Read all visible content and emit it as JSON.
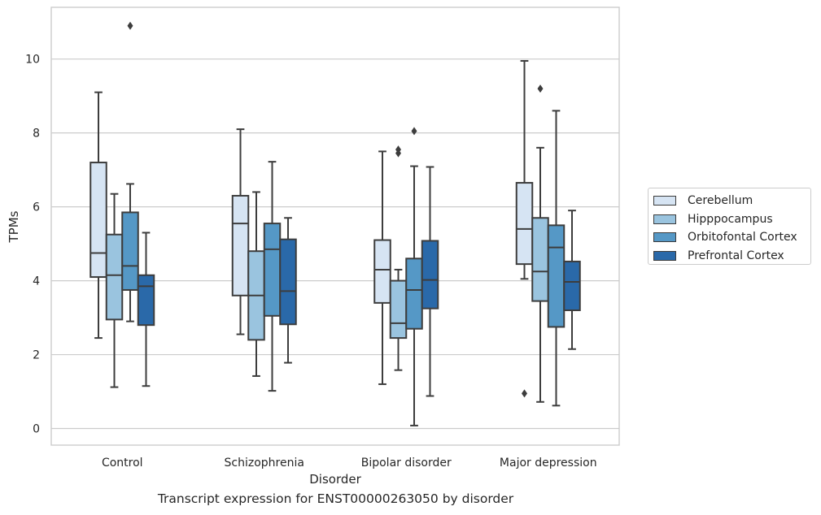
{
  "caption": "Transcript expression for ENST00000263050 by disorder",
  "chart_data": {
    "type": "boxplot",
    "xlabel": "Disorder",
    "ylabel": "TPMs",
    "ylim": [
      -0.45,
      11.4
    ],
    "yticks": [
      0,
      2,
      4,
      6,
      8,
      10
    ],
    "categories": [
      "Control",
      "Schizophrenia",
      "Bipolar disorder",
      "Major depression"
    ],
    "grid": "horizontal",
    "legend_position": "right",
    "series": [
      {
        "name": "Cerebellum",
        "color": "#d6e4f3",
        "boxes": [
          {
            "whisker_low": 2.45,
            "q1": 4.1,
            "median": 4.75,
            "q3": 7.2,
            "whisker_high": 9.1,
            "outliers": []
          },
          {
            "whisker_low": 2.55,
            "q1": 3.6,
            "median": 5.55,
            "q3": 6.3,
            "whisker_high": 8.1,
            "outliers": []
          },
          {
            "whisker_low": 1.2,
            "q1": 3.4,
            "median": 4.3,
            "q3": 5.1,
            "whisker_high": 7.5,
            "outliers": []
          },
          {
            "whisker_low": 4.05,
            "q1": 4.45,
            "median": 5.4,
            "q3": 6.65,
            "whisker_high": 9.95,
            "outliers": [
              0.95
            ]
          }
        ]
      },
      {
        "name": "Hipppocampus",
        "color": "#9ac4df",
        "boxes": [
          {
            "whisker_low": 1.12,
            "q1": 2.95,
            "median": 4.15,
            "q3": 5.25,
            "whisker_high": 6.35,
            "outliers": []
          },
          {
            "whisker_low": 1.42,
            "q1": 2.4,
            "median": 3.6,
            "q3": 4.8,
            "whisker_high": 6.4,
            "outliers": []
          },
          {
            "whisker_low": 1.58,
            "q1": 2.45,
            "median": 2.85,
            "q3": 4.0,
            "whisker_high": 4.3,
            "outliers": [
              7.45,
              7.55
            ]
          },
          {
            "whisker_low": 0.72,
            "q1": 3.45,
            "median": 4.25,
            "q3": 5.7,
            "whisker_high": 7.6,
            "outliers": [
              9.2
            ]
          }
        ]
      },
      {
        "name": "Orbitofontal Cortex",
        "color": "#5598c6",
        "boxes": [
          {
            "whisker_low": 2.9,
            "q1": 3.75,
            "median": 4.4,
            "q3": 5.85,
            "whisker_high": 6.62,
            "outliers": [
              10.9
            ]
          },
          {
            "whisker_low": 1.02,
            "q1": 3.05,
            "median": 4.85,
            "q3": 5.55,
            "whisker_high": 7.22,
            "outliers": []
          },
          {
            "whisker_low": 0.08,
            "q1": 2.7,
            "median": 3.75,
            "q3": 4.6,
            "whisker_high": 7.1,
            "outliers": [
              8.05
            ]
          },
          {
            "whisker_low": 0.62,
            "q1": 2.75,
            "median": 4.9,
            "q3": 5.5,
            "whisker_high": 8.6,
            "outliers": []
          }
        ]
      },
      {
        "name": "Prefrontal Cortex",
        "color": "#2a69a9",
        "boxes": [
          {
            "whisker_low": 1.15,
            "q1": 2.8,
            "median": 3.85,
            "q3": 4.15,
            "whisker_high": 5.3,
            "outliers": []
          },
          {
            "whisker_low": 1.78,
            "q1": 2.82,
            "median": 3.72,
            "q3": 5.12,
            "whisker_high": 5.7,
            "outliers": []
          },
          {
            "whisker_low": 0.88,
            "q1": 3.25,
            "median": 4.02,
            "q3": 5.08,
            "whisker_high": 7.08,
            "outliers": []
          },
          {
            "whisker_low": 2.15,
            "q1": 3.2,
            "median": 3.97,
            "q3": 4.52,
            "whisker_high": 5.9,
            "outliers": []
          }
        ]
      }
    ]
  }
}
